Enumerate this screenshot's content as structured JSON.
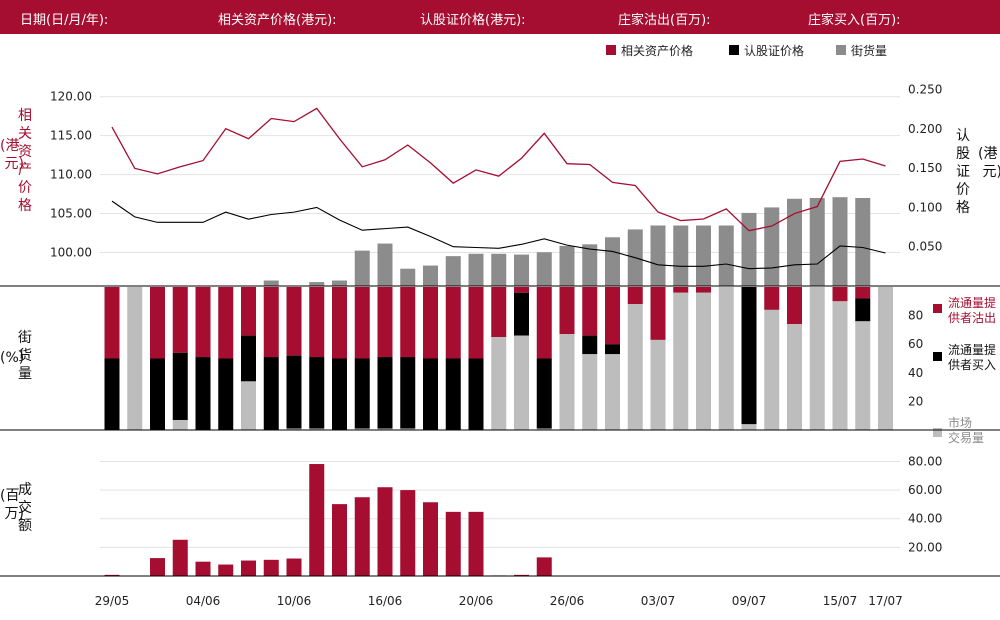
{
  "header": {
    "date_label": "日期(日/月/年):",
    "underlying_label": "相关资产价格(港元):",
    "warrant_label": "认股证价格(港元):",
    "sell_label": "庄家沽出(百万):",
    "buy_label": "庄家买入(百万):"
  },
  "colors": {
    "red": "#a50d31",
    "black": "#000000",
    "dark_gray": "#8c8c8c",
    "light_gray": "#bdbdbd"
  },
  "chart_data": [
    {
      "type": "line",
      "legend": [
        "相关资产价格",
        "认股证价格",
        "街货量"
      ],
      "left_axis_label": "相关资产价格（港元）",
      "right_axis_label": "认股证价格（港元）",
      "left_ticks": [
        "100.00",
        "105.00",
        "110.00",
        "115.00",
        "120.00"
      ],
      "right_ticks": [
        "0.050",
        "0.100",
        "0.150",
        "0.200",
        "0.250"
      ],
      "left_range": [
        95.7,
        122.4
      ],
      "right_range": [
        0.0,
        0.2647
      ],
      "grid": true,
      "underlying_price": [
        116.1,
        110.8,
        110.1,
        111.0,
        111.8,
        115.9,
        114.6,
        117.2,
        116.8,
        118.5,
        114.6,
        111.0,
        111.9,
        113.8,
        111.5,
        108.9,
        110.6,
        109.8,
        112.1,
        115.3,
        111.4,
        111.3,
        109.0,
        108.6,
        105.2,
        104.1,
        104.3,
        105.6,
        102.8,
        103.4,
        105.0,
        105.9,
        111.7,
        112.0,
        111.1
      ],
      "warrant_price": [
        0.108,
        0.088,
        0.081,
        0.081,
        0.081,
        0.094,
        0.085,
        0.091,
        0.094,
        0.1,
        0.084,
        0.071,
        0.073,
        0.075,
        0.063,
        0.05,
        0.049,
        0.048,
        0.053,
        0.06,
        0.052,
        0.047,
        0.044,
        0.036,
        0.027,
        0.025,
        0.025,
        0.028,
        0.022,
        0.023,
        0.027,
        0.028,
        0.051,
        0.049,
        0.042
      ],
      "outstanding_heights_right_units": [
        0.0,
        0.0,
        0.0,
        0.0,
        0.0,
        0.0,
        0.0,
        0.007,
        0.0,
        0.005,
        0.007,
        0.045,
        0.054,
        0.022,
        0.026,
        0.038,
        0.041,
        0.041,
        0.04,
        0.043,
        0.051,
        0.053,
        0.062,
        0.072,
        0.077,
        0.077,
        0.077,
        0.077,
        0.093,
        0.1,
        0.111,
        0.112,
        0.113,
        0.112,
        0.0
      ]
    },
    {
      "type": "bar",
      "stacked": true,
      "y_axis_label": "街货量（%）",
      "ticks": [
        "20",
        "40",
        "60",
        "80"
      ],
      "ylim": [
        0,
        100
      ],
      "series": [
        {
          "name": "流通量提供者沽出",
          "values": [
            50,
            0,
            50,
            46,
            49,
            50,
            34,
            49,
            48,
            49,
            50,
            50,
            49,
            49,
            50,
            50,
            50,
            35,
            4,
            50,
            33,
            34,
            40,
            12,
            37,
            4,
            4,
            0,
            0,
            16,
            26,
            0,
            10,
            8,
            0
          ]
        },
        {
          "name": "流通量提供者买入",
          "values": [
            50,
            0,
            50,
            47,
            51,
            50,
            32,
            51,
            51,
            50,
            50,
            49,
            50,
            50,
            50,
            50,
            50,
            0,
            30,
            49,
            0,
            13,
            7,
            0,
            0,
            0,
            0,
            0,
            96,
            0,
            0,
            0,
            0,
            16,
            0
          ]
        },
        {
          "name": "市场交易量",
          "values": [
            0,
            100,
            0,
            7,
            0,
            0,
            34,
            0,
            1,
            1,
            0,
            1,
            1,
            1,
            0,
            0,
            0,
            65,
            66,
            1,
            67,
            53,
            53,
            88,
            63,
            96,
            96,
            100,
            4,
            84,
            74,
            100,
            90,
            76,
            100
          ]
        }
      ]
    },
    {
      "type": "bar",
      "y_axis_label": "成交额（百万）",
      "ticks": [
        "20.00",
        "40.00",
        "60.00",
        "80.00"
      ],
      "ylim": [
        0,
        88
      ],
      "values": [
        0.8,
        0,
        12.5,
        25.3,
        10.0,
        8.0,
        10.8,
        11.3,
        12.2,
        78.2,
        50.2,
        55.0,
        62.0,
        60.0,
        51.5,
        44.8,
        44.8,
        0.4,
        0.8,
        13.0,
        0.3,
        0.3,
        0.3,
        0.3,
        0.3,
        0.3,
        0.3,
        0.3,
        0.3,
        0.3,
        0.3,
        0.3,
        0.3,
        0.3,
        0.3
      ],
      "x_ticks": [
        "29/05",
        "04/06",
        "10/06",
        "16/06",
        "20/06",
        "26/06",
        "03/07",
        "09/07",
        "15/07",
        "17/07"
      ],
      "x_tick_index": [
        0,
        4,
        8,
        12,
        16,
        20,
        24,
        28,
        32,
        34
      ]
    }
  ]
}
